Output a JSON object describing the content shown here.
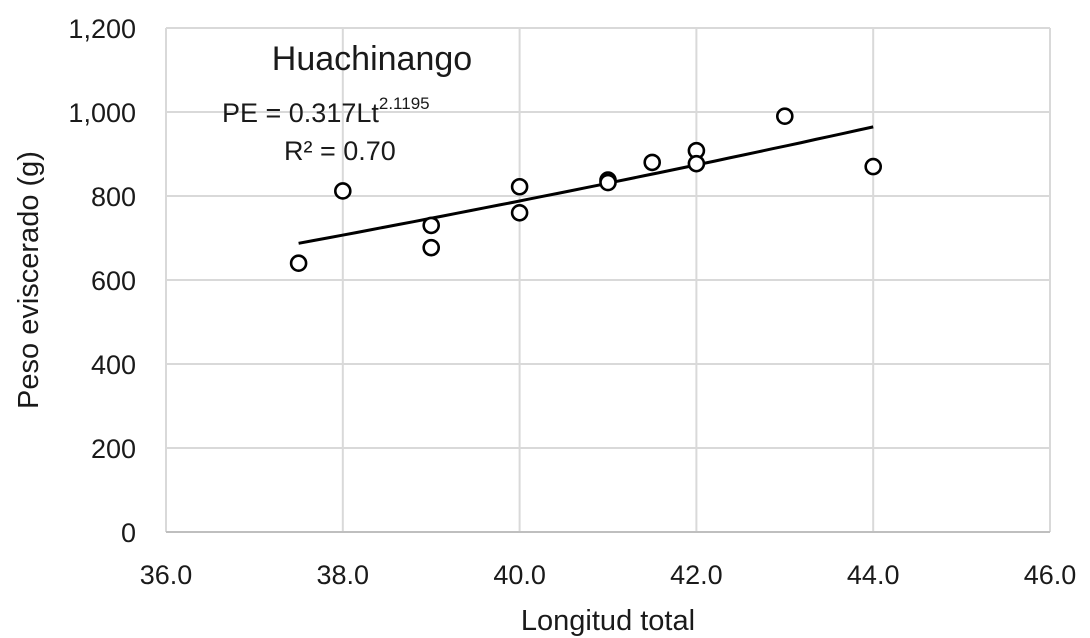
{
  "chart_data": {
    "type": "scatter",
    "title": "Huachinango",
    "xlabel": "Longitud total",
    "ylabel": "Peso eviscerado (g)",
    "xlim": [
      36,
      46
    ],
    "ylim": [
      0,
      1200
    ],
    "x_ticks": [
      "36.0",
      "38.0",
      "40.0",
      "42.0",
      "44.0",
      "46.0"
    ],
    "y_ticks": [
      "0",
      "200",
      "400",
      "600",
      "800",
      "1,000",
      "1,200"
    ],
    "grid": true,
    "points": [
      {
        "x": 37.5,
        "y": 640
      },
      {
        "x": 38.0,
        "y": 812
      },
      {
        "x": 39.0,
        "y": 730
      },
      {
        "x": 39.0,
        "y": 677
      },
      {
        "x": 40.0,
        "y": 822
      },
      {
        "x": 40.0,
        "y": 760
      },
      {
        "x": 41.0,
        "y": 838
      },
      {
        "x": 41.0,
        "y": 832
      },
      {
        "x": 41.5,
        "y": 880
      },
      {
        "x": 42.0,
        "y": 908
      },
      {
        "x": 42.0,
        "y": 877
      },
      {
        "x": 43.0,
        "y": 990
      },
      {
        "x": 44.0,
        "y": 870
      }
    ],
    "trendline": {
      "type": "power",
      "a": 0.317,
      "b": 2.1195,
      "x_range": [
        37.5,
        44.0
      ],
      "equation_main": "PE = 0.317Lt",
      "equation_exponent": "2.1195",
      "r2_label": "R² = 0.70"
    }
  }
}
